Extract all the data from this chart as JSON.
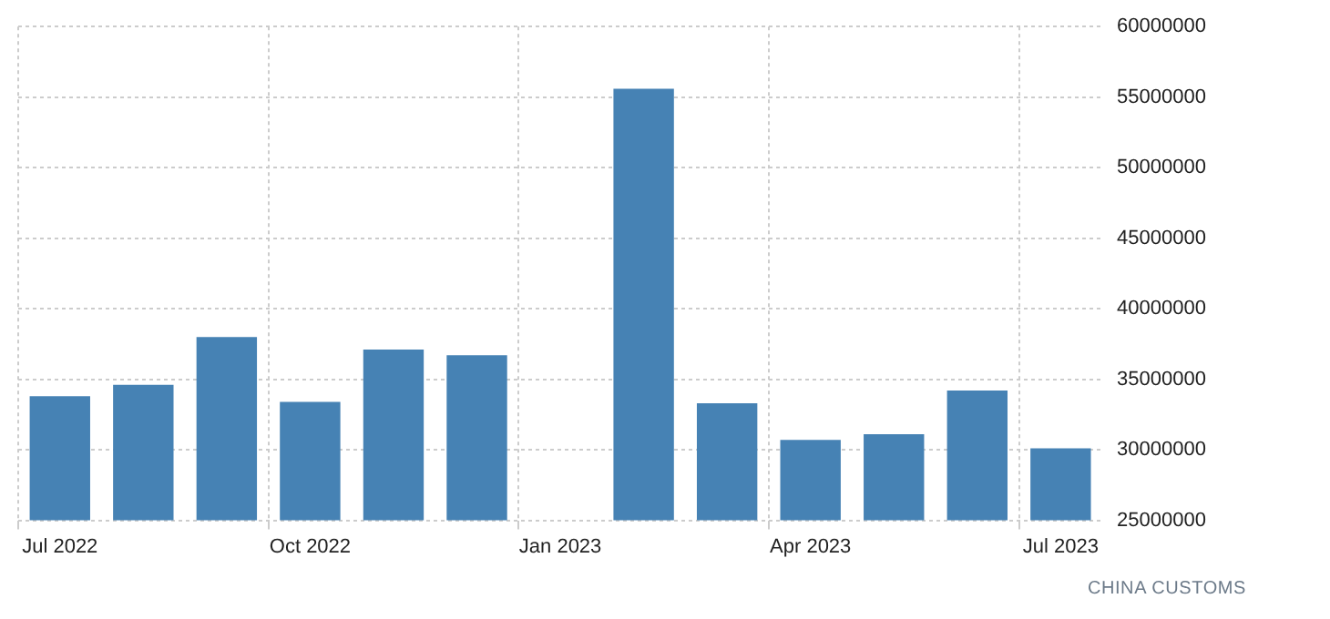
{
  "chart_data": {
    "type": "bar",
    "categories": [
      "Jul 2022",
      null,
      null,
      "Oct 2022",
      null,
      null,
      "Jan 2023",
      null,
      null,
      "Apr 2023",
      null,
      null,
      "Jul 2023"
    ],
    "values": [
      33800000,
      34600000,
      38000000,
      33400000,
      37100000,
      36700000,
      null,
      55600000,
      33300000,
      30700000,
      31100000,
      34200000,
      30100000
    ],
    "color": "#4682b4",
    "ylim": [
      25000000,
      60000000
    ],
    "yticks": [
      25000000,
      30000000,
      35000000,
      40000000,
      45000000,
      50000000,
      55000000,
      60000000
    ],
    "grid": true,
    "legend": false,
    "annotations": [
      "CHINA CUSTOMS"
    ]
  }
}
